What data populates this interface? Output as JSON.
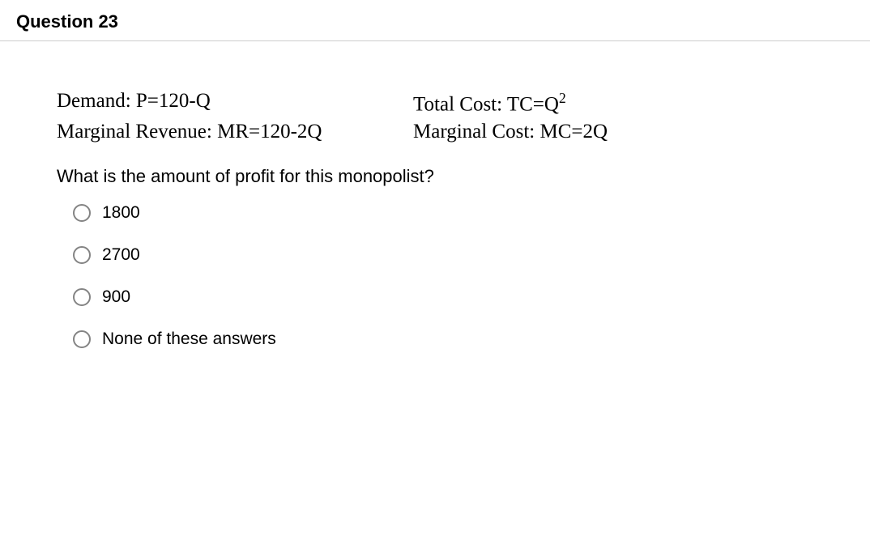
{
  "header": {
    "title": "Question 23"
  },
  "equations": {
    "row1_left": "Demand: P=120-Q",
    "row1_right_prefix": "Total Cost: TC=Q",
    "row1_right_sup": "2",
    "row2_left": "Marginal Revenue: MR=120-2Q",
    "row2_right": "Marginal Cost: MC=2Q"
  },
  "prompt": "What is the amount of profit for this monopolist?",
  "options": [
    "1800",
    "2700",
    "900",
    "None of these answers"
  ],
  "style": {
    "body_font": "Helvetica Neue, Arial, sans-serif",
    "serif_font": "Times New Roman, serif",
    "title_fontsize": 22,
    "title_fontweight": 700,
    "eq_fontsize": 25,
    "prompt_fontsize": 22,
    "option_fontsize": 21,
    "text_color": "#000000",
    "background_color": "#ffffff",
    "divider_color": "#cccccc",
    "radio_border_color": "#848484",
    "radio_size": 22
  }
}
